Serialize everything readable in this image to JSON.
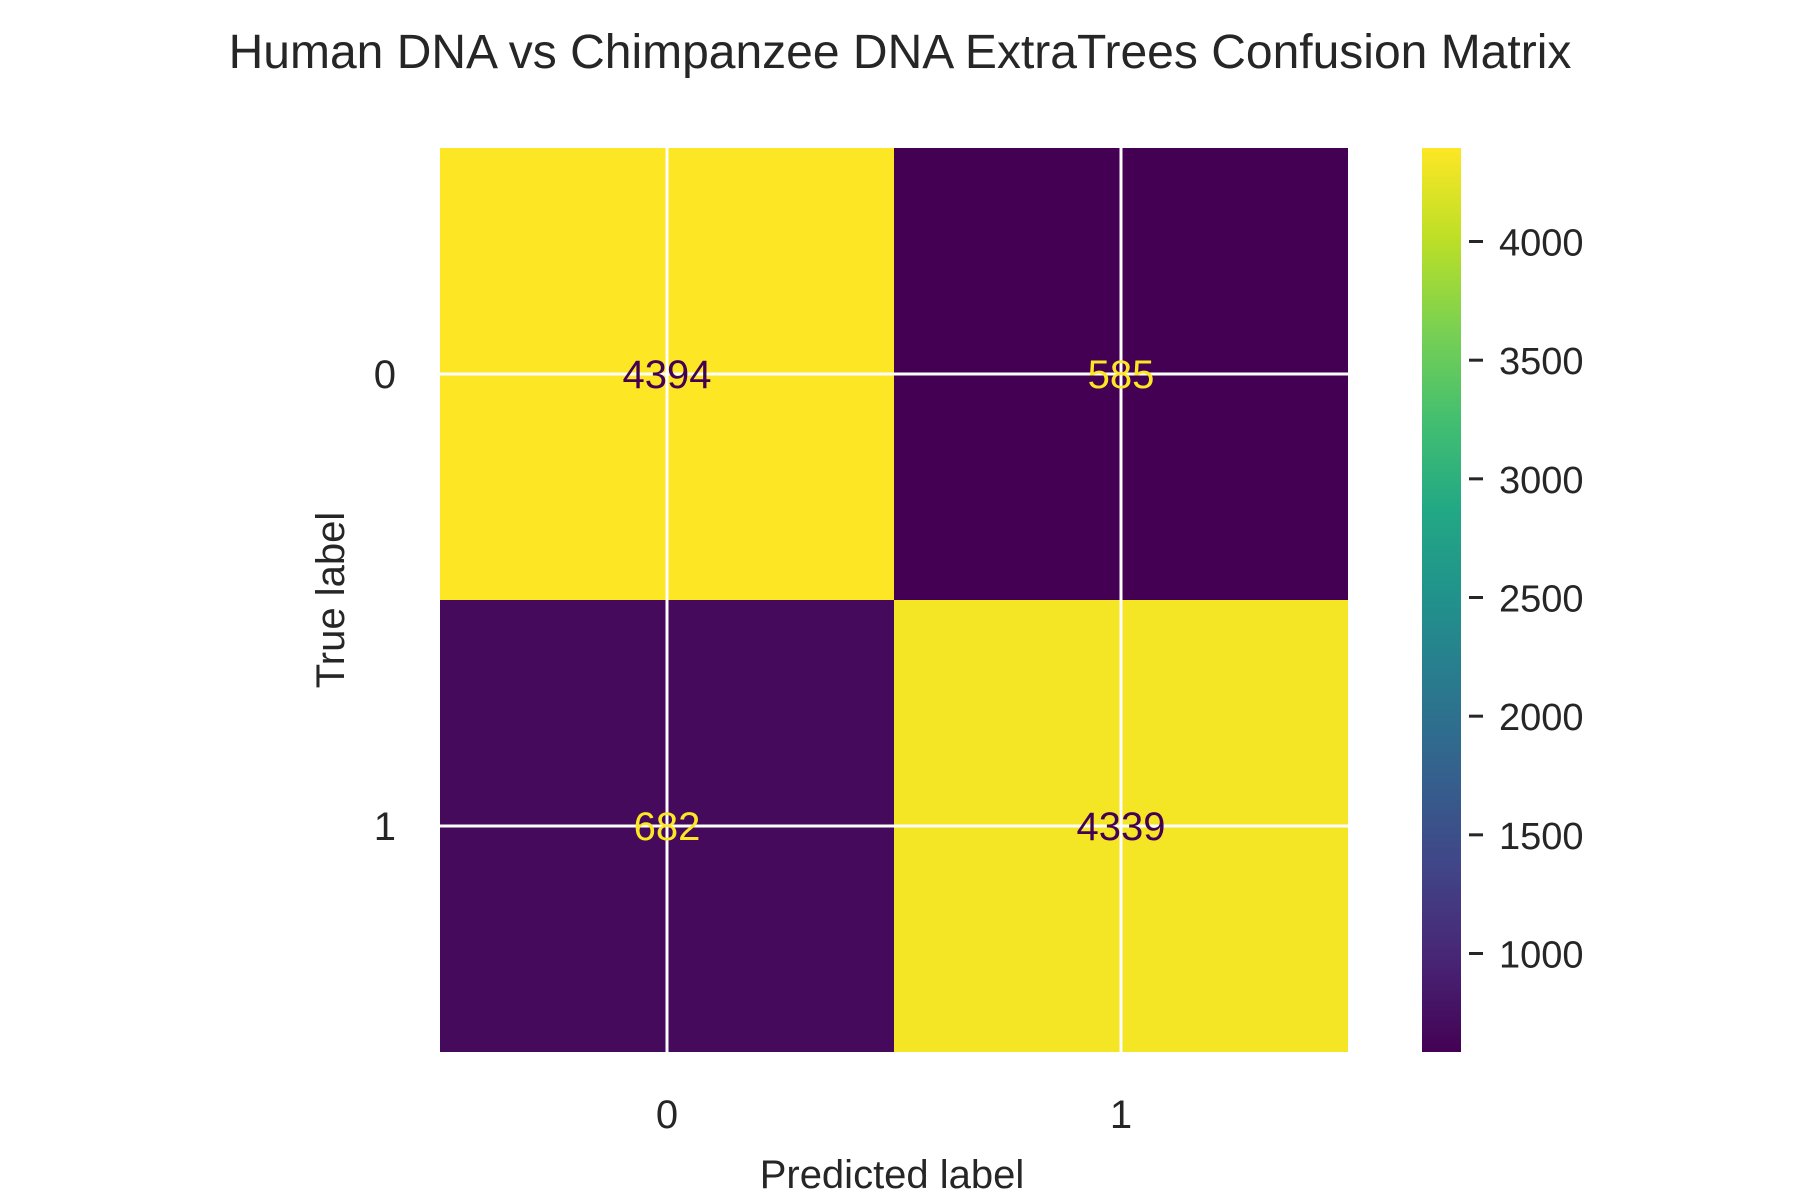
{
  "chart_data": {
    "type": "heatmap",
    "title": "Human DNA vs Chimpanzee DNA ExtraTrees Confusion Matrix",
    "xlabel": "Predicted label",
    "ylabel": "True label",
    "x_categories": [
      "0",
      "1"
    ],
    "y_categories": [
      "0",
      "1"
    ],
    "values": [
      [
        4394,
        585
      ],
      [
        682,
        4339
      ]
    ],
    "colormap": "viridis",
    "color_range": [
      585,
      4394
    ],
    "colorbar_ticks": [
      "1000",
      "1500",
      "2000",
      "2500",
      "3000",
      "3500",
      "4000"
    ],
    "grid": true,
    "colors": {
      "high": "#fde725",
      "low": "#440154",
      "text_on_high": "#440154",
      "text_on_low": "#fde725",
      "grid": "#ffffff"
    }
  }
}
